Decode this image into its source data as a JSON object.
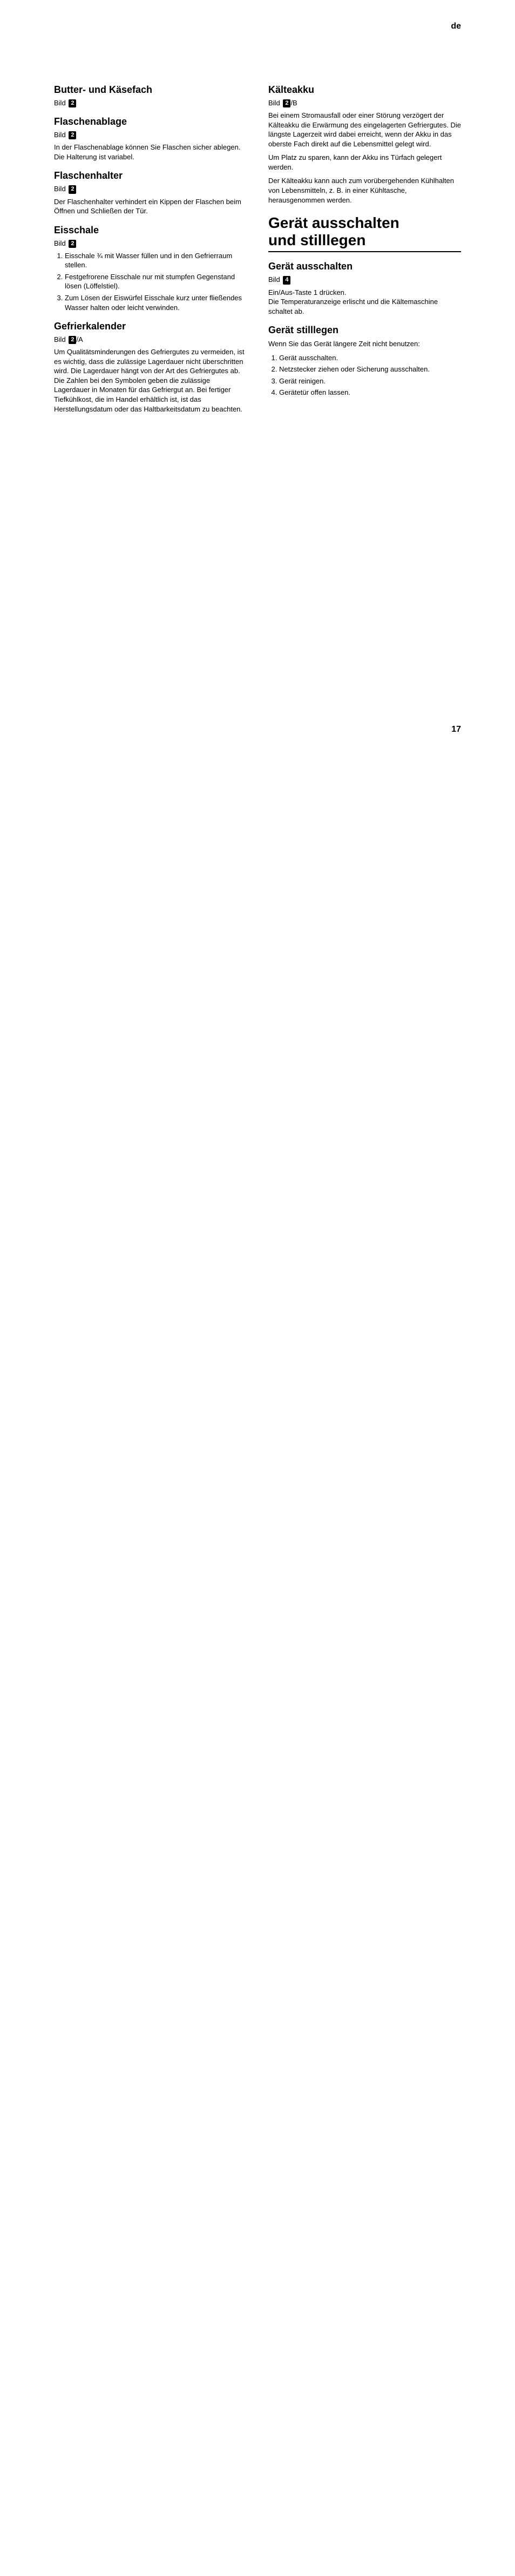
{
  "lang_tag": "de",
  "page_number": "17",
  "left": {
    "butter": {
      "heading": "Butter- und Käsefach",
      "bild_label": "Bild",
      "bild_ref": "2"
    },
    "flaschenablage": {
      "heading": "Flaschenablage",
      "bild_label": "Bild",
      "bild_ref": "2",
      "para": "In der Flaschenablage können Sie Flaschen sicher ablegen. Die Halterung ist variabel."
    },
    "flaschenhalter": {
      "heading": "Flaschenhalter",
      "bild_label": "Bild",
      "bild_ref": "2",
      "para": "Der Flaschenhalter verhindert ein Kippen der Flaschen beim Öffnen und Schließen der Tür."
    },
    "eisschale": {
      "heading": "Eisschale",
      "bild_label": "Bild",
      "bild_ref": "2",
      "steps": [
        "Eisschale ¾ mit Wasser füllen und in den Gefrierraum stellen.",
        "Festgefrorene Eisschale nur mit stumpfen Gegenstand lösen (Löffelstiel).",
        "Zum Lösen der Eiswürfel Eisschale kurz unter fließendes Wasser halten oder leicht verwinden."
      ]
    },
    "gefrierkalender": {
      "heading": "Gefrierkalender",
      "bild_label": "Bild",
      "bild_ref": "2",
      "bild_suffix": "/A",
      "para": "Um Qualitätsminderungen des Gefriergutes zu vermeiden, ist es wichtig, dass die zulässige Lagerdauer nicht überschritten wird. Die Lagerdauer hängt von der Art des Gefriergutes ab. Die Zahlen bei den Symbolen geben die zulässige Lagerdauer in Monaten für das Gefriergut an. Bei fertiger Tiefkühlkost, die im Handel erhältlich ist, ist das Herstellungsdatum oder das Haltbarkeitsdatum zu beachten."
    }
  },
  "right": {
    "kaelteakku": {
      "heading": "Kälteakku",
      "bild_label": "Bild",
      "bild_ref": "2",
      "bild_suffix": "/B",
      "para1": "Bei einem Stromausfall oder einer Störung verzögert der Kälteakku die Erwärmung des eingelagerten Gefriergutes. Die längste Lagerzeit wird dabei erreicht, wenn der Akku in das oberste Fach direkt auf die Lebensmittel gelegt wird.",
      "para2": "Um Platz zu sparen, kann der Akku ins Türfach gelegert werden.",
      "para3": "Der Kälteakku kann auch zum vorübergehenden Kühlhalten von Lebensmitteln, z. B. in einer Kühltasche, herausgenommen werden."
    },
    "section": {
      "heading_line1": "Gerät ausschalten",
      "heading_line2": "und stilllegen"
    },
    "ausschalten": {
      "heading": "Gerät ausschalten",
      "bild_label": "Bild",
      "bild_ref": "4",
      "para": "Ein/Aus-Taste 1 drücken.\nDie Temperaturanzeige erlischt und die Kältemaschine schaltet ab."
    },
    "stilllegen": {
      "heading": "Gerät stilllegen",
      "para": "Wenn Sie das Gerät längere Zeit nicht benutzen:",
      "steps": [
        "Gerät ausschalten.",
        "Netzstecker ziehen oder Sicherung ausschalten.",
        "Gerät reinigen.",
        "Gerätetür offen lassen."
      ]
    }
  }
}
